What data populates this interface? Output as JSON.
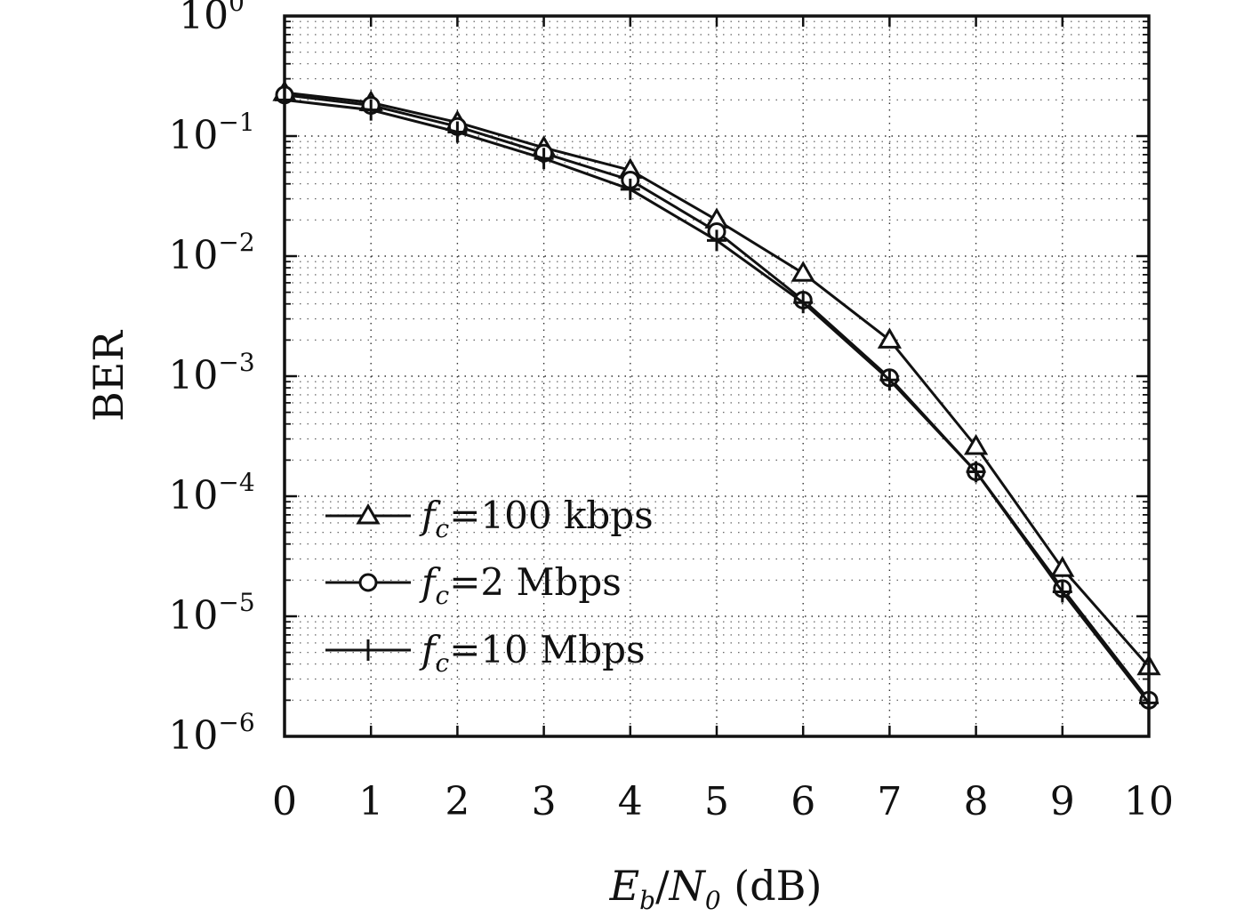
{
  "chart_data": {
    "type": "line",
    "xlabel": {
      "E": "E",
      "b": "b",
      "slash": "/",
      "N": "N",
      "zero": "0",
      "unit": " (dB)"
    },
    "ylabel": "BER",
    "xlim": [
      0,
      10
    ],
    "ylim": [
      1e-06,
      1
    ],
    "yscale": "log",
    "grid": true,
    "legend_position": "lower-left",
    "x": [
      0,
      1,
      2,
      3,
      4,
      5,
      6,
      7,
      8,
      9,
      10
    ],
    "xtick_labels": [
      "0",
      "1",
      "2",
      "3",
      "4",
      "5",
      "6",
      "7",
      "8",
      "9",
      "10"
    ],
    "ytick_labels": [
      {
        "base": "10",
        "exp": "0"
      },
      {
        "base": "10",
        "exp": "−1"
      },
      {
        "base": "10",
        "exp": "−2"
      },
      {
        "base": "10",
        "exp": "−3"
      },
      {
        "base": "10",
        "exp": "−4"
      },
      {
        "base": "10",
        "exp": "−5"
      },
      {
        "base": "10",
        "exp": "−6"
      }
    ],
    "series": [
      {
        "name": {
          "f": "f",
          "c": "c",
          "rest": "=100 kbps"
        },
        "marker": "triangle",
        "values": [
          0.23,
          0.19,
          0.13,
          0.08,
          0.052,
          0.02,
          0.0072,
          0.002,
          0.00026,
          2.5e-05,
          3.8e-06
        ]
      },
      {
        "name": {
          "f": "f",
          "c": "c",
          "rest": "=2 Mbps"
        },
        "marker": "circle",
        "values": [
          0.22,
          0.18,
          0.12,
          0.072,
          0.043,
          0.016,
          0.0043,
          0.00097,
          0.00016,
          1.7e-05,
          2e-06
        ]
      },
      {
        "name": {
          "f": "f",
          "c": "c",
          "rest": "=10 Mbps"
        },
        "marker": "plus",
        "values": [
          0.2,
          0.165,
          0.108,
          0.065,
          0.036,
          0.0135,
          0.0041,
          0.00093,
          0.00016,
          1.6e-05,
          1.9e-06
        ]
      }
    ]
  }
}
